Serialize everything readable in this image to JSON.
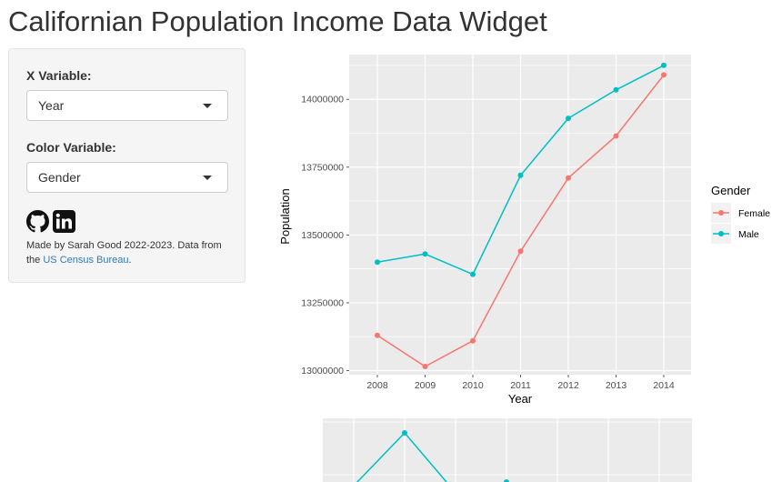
{
  "page": {
    "title": "Californian Population Income Data Widget"
  },
  "sidebar": {
    "x_variable": {
      "label": "X Variable:",
      "selected": "Year"
    },
    "color_variable": {
      "label": "Color Variable:",
      "selected": "Gender"
    },
    "icons": [
      {
        "name": "github-icon"
      },
      {
        "name": "linkedin-icon"
      }
    ],
    "credit": {
      "text": "Made by Sarah Good 2022-2023. Data from the ",
      "link_text": "US Census Bureau",
      "suffix": "."
    }
  },
  "colors": {
    "female": "#F8766D",
    "male": "#00BFC4",
    "panel": "#EBEBEB",
    "link": "#337ab7"
  },
  "chart_data": [
    {
      "type": "line",
      "title": "",
      "xlabel": "Year",
      "ylabel": "Population",
      "categories": [
        "2008",
        "2009",
        "2010",
        "2011",
        "2012",
        "2013",
        "2014"
      ],
      "series": [
        {
          "name": "Female",
          "color": "#F8766D",
          "values": [
            13130000,
            13015000,
            13110000,
            13440000,
            13710000,
            13865000,
            14090000
          ]
        },
        {
          "name": "Male",
          "color": "#00BFC4",
          "values": [
            13400000,
            13430000,
            13355000,
            13720000,
            13930000,
            14035000,
            14125000
          ]
        }
      ],
      "ylim": [
        12985000,
        14165000
      ],
      "y_ticks": [
        "13000000",
        "13250000",
        "13500000",
        "13750000",
        "14000000"
      ],
      "y_tick_values": [
        13000000,
        13250000,
        13500000,
        13750000,
        14000000
      ],
      "legend": {
        "title": "Gender",
        "position": "right"
      },
      "grid": true
    },
    {
      "type": "line",
      "note": "partially visible second plot (cut off at bottom of screenshot)",
      "series": [
        {
          "color": "#00BFC4"
        }
      ],
      "grid": true
    }
  ]
}
